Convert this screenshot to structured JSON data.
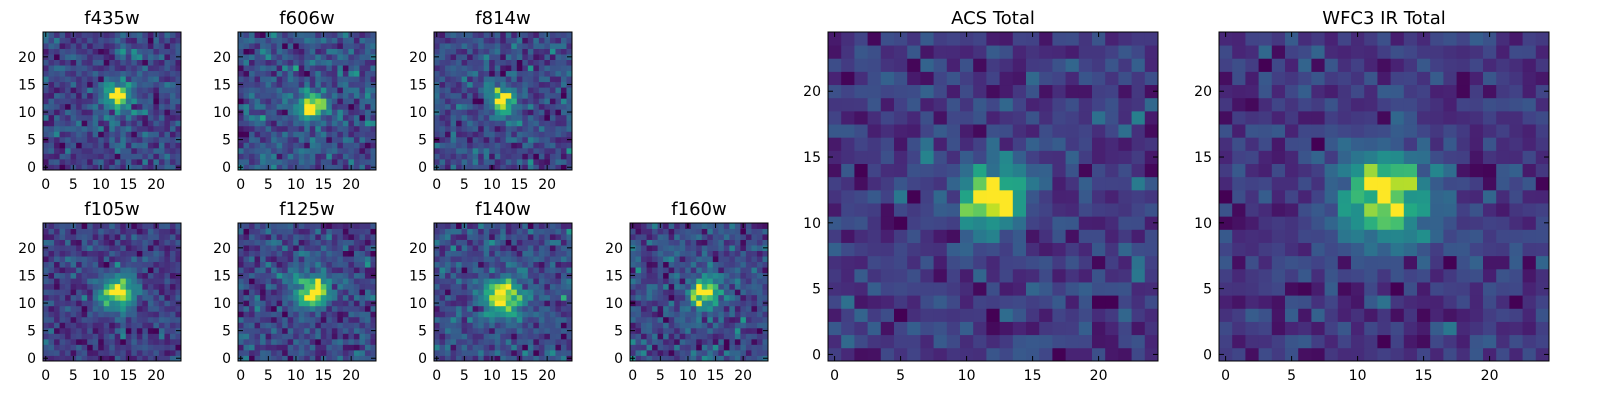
{
  "chart_data": [
    {
      "type": "heatmap",
      "title": "f435w",
      "colormap": "viridis",
      "shape": [
        25,
        25
      ],
      "source_center": [
        13,
        13
      ],
      "source_sigma": 2.0,
      "source_peak": 0.85,
      "noise": 0.62,
      "seed": 11,
      "xlim": [
        0,
        24
      ],
      "ylim": [
        0,
        24
      ],
      "xticks": [
        "0",
        "5",
        "10",
        "15",
        "20"
      ],
      "yticks": [
        "0",
        "5",
        "10",
        "15",
        "20"
      ],
      "origin": "lower",
      "grid": false
    },
    {
      "type": "heatmap",
      "title": "f606w",
      "colormap": "viridis",
      "shape": [
        25,
        25
      ],
      "source_center": [
        13,
        11
      ],
      "source_sigma": 1.6,
      "source_peak": 1.0,
      "noise": 0.7,
      "seed": 23,
      "xlim": [
        0,
        24
      ],
      "ylim": [
        0,
        24
      ],
      "xticks": [
        "0",
        "5",
        "10",
        "15",
        "20"
      ],
      "yticks": [
        "0",
        "5",
        "10",
        "15",
        "20"
      ],
      "origin": "lower",
      "grid": false
    },
    {
      "type": "heatmap",
      "title": "f814w",
      "colormap": "viridis",
      "shape": [
        25,
        25
      ],
      "source_center": [
        12,
        12
      ],
      "source_sigma": 1.6,
      "source_peak": 1.0,
      "noise": 0.65,
      "seed": 37,
      "xlim": [
        0,
        24
      ],
      "ylim": [
        0,
        24
      ],
      "xticks": [
        "0",
        "5",
        "10",
        "15",
        "20"
      ],
      "yticks": [
        "0",
        "5",
        "10",
        "15",
        "20"
      ],
      "origin": "lower",
      "grid": false
    },
    {
      "type": "heatmap",
      "title": "f105w",
      "colormap": "viridis",
      "shape": [
        25,
        25
      ],
      "source_center": [
        13,
        12
      ],
      "source_sigma": 2.4,
      "source_peak": 0.95,
      "noise": 0.55,
      "seed": 41,
      "xlim": [
        0,
        24
      ],
      "ylim": [
        0,
        24
      ],
      "xticks": [
        "0",
        "5",
        "10",
        "15",
        "20"
      ],
      "yticks": [
        "0",
        "5",
        "10",
        "15",
        "20"
      ],
      "origin": "lower",
      "grid": false
    },
    {
      "type": "heatmap",
      "title": "f125w",
      "colormap": "viridis",
      "shape": [
        25,
        25
      ],
      "source_center": [
        13,
        12
      ],
      "source_sigma": 2.2,
      "source_peak": 0.9,
      "noise": 0.55,
      "seed": 53,
      "xlim": [
        0,
        24
      ],
      "ylim": [
        0,
        24
      ],
      "xticks": [
        "0",
        "5",
        "10",
        "15",
        "20"
      ],
      "yticks": [
        "0",
        "5",
        "10",
        "15",
        "20"
      ],
      "origin": "lower",
      "grid": false
    },
    {
      "type": "heatmap",
      "title": "f140w",
      "colormap": "viridis",
      "shape": [
        25,
        25
      ],
      "source_center": [
        12,
        11
      ],
      "source_sigma": 2.5,
      "source_peak": 0.9,
      "noise": 0.55,
      "seed": 67,
      "xlim": [
        0,
        24
      ],
      "ylim": [
        0,
        24
      ],
      "xticks": [
        "0",
        "5",
        "10",
        "15",
        "20"
      ],
      "yticks": [
        "0",
        "5",
        "10",
        "15",
        "20"
      ],
      "origin": "lower",
      "grid": false
    },
    {
      "type": "heatmap",
      "title": "f160w",
      "colormap": "viridis",
      "shape": [
        25,
        25
      ],
      "source_center": [
        13,
        12
      ],
      "source_sigma": 2.0,
      "source_peak": 0.9,
      "noise": 0.6,
      "seed": 79,
      "xlim": [
        0,
        24
      ],
      "ylim": [
        0,
        24
      ],
      "xticks": [
        "0",
        "5",
        "10",
        "15",
        "20"
      ],
      "yticks": [
        "0",
        "5",
        "10",
        "15",
        "20"
      ],
      "origin": "lower",
      "grid": false
    },
    {
      "type": "heatmap",
      "title": "ACS Total",
      "colormap": "viridis",
      "shape": [
        25,
        25
      ],
      "source_center": [
        12,
        12
      ],
      "source_sigma": 1.8,
      "source_peak": 1.0,
      "noise": 0.45,
      "seed": 97,
      "xlim": [
        0,
        24
      ],
      "ylim": [
        0,
        24
      ],
      "xticks": [
        "0",
        "5",
        "10",
        "15",
        "20"
      ],
      "yticks": [
        "0",
        "5",
        "10",
        "15",
        "20"
      ],
      "origin": "lower",
      "grid": false
    },
    {
      "type": "heatmap",
      "title": "WFC3 IR Total",
      "colormap": "viridis",
      "shape": [
        25,
        25
      ],
      "source_center": [
        12,
        12
      ],
      "source_sigma": 2.6,
      "source_peak": 0.9,
      "noise": 0.42,
      "seed": 109,
      "xlim": [
        0,
        24
      ],
      "ylim": [
        0,
        24
      ],
      "xticks": [
        "0",
        "5",
        "10",
        "15",
        "20"
      ],
      "yticks": [
        "0",
        "5",
        "10",
        "15",
        "20"
      ],
      "origin": "lower",
      "grid": false
    }
  ]
}
